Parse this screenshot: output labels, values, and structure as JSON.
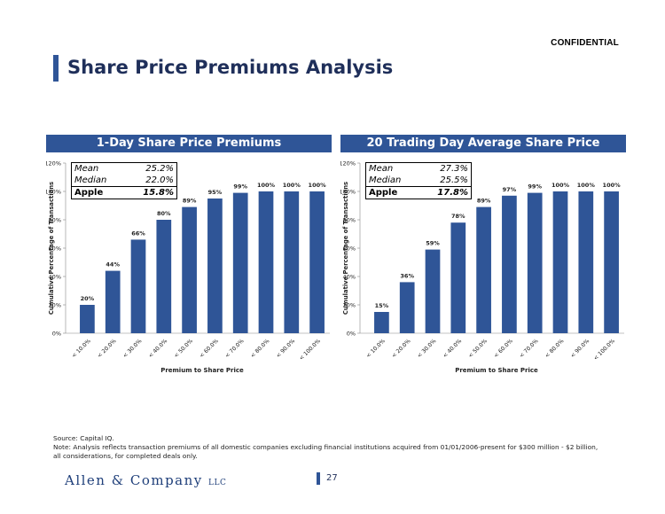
{
  "header": {
    "confidential": "CONFIDENTIAL",
    "title": "Share Price Premiums Analysis"
  },
  "colors": {
    "bar": "#2F5597",
    "accent": "#2F5597",
    "title": "#1F2F5A"
  },
  "chart_data": [
    {
      "type": "bar",
      "title": "1-Day Share Price Premiums",
      "xlabel": "Premium to Share Price",
      "ylabel": "Cumulative Percentage of Transactions",
      "ylim": [
        0,
        120
      ],
      "y_ticks": [
        "0%",
        "20%",
        "40%",
        "60%",
        "80%",
        "100%",
        "120%"
      ],
      "categories": [
        "< 10.0%",
        "< 20.0%",
        "< 30.0%",
        "< 40.0%",
        "< 50.0%",
        "< 60.0%",
        "< 70.0%",
        "< 80.0%",
        "< 90.0%",
        "< 100.0%"
      ],
      "values": [
        20,
        44,
        66,
        80,
        89,
        95,
        99,
        100,
        100,
        100
      ],
      "labels": [
        "20%",
        "44%",
        "66%",
        "80%",
        "89%",
        "95%",
        "99%",
        "100%",
        "100%",
        "100%"
      ],
      "stats": [
        {
          "label": "Mean",
          "value": "25.2%"
        },
        {
          "label": "Median",
          "value": "22.0%"
        },
        {
          "label": "Apple",
          "value": "15.8%"
        }
      ]
    },
    {
      "type": "bar",
      "title": "20 Trading Day Average Share Price Premiums",
      "xlabel": "Premium to Share Price",
      "ylabel": "Cumulative Percentage of Transactions",
      "ylim": [
        0,
        120
      ],
      "y_ticks": [
        "0%",
        "20%",
        "40%",
        "60%",
        "80%",
        "100%",
        "120%"
      ],
      "categories": [
        "< 10.0%",
        "< 20.0%",
        "< 30.0%",
        "< 40.0%",
        "< 50.0%",
        "< 60.0%",
        "< 70.0%",
        "< 80.0%",
        "< 90.0%",
        "< 100.0%"
      ],
      "values": [
        15,
        36,
        59,
        78,
        89,
        97,
        99,
        100,
        100,
        100
      ],
      "labels": [
        "15%",
        "36%",
        "59%",
        "78%",
        "89%",
        "97%",
        "99%",
        "100%",
        "100%",
        "100%"
      ],
      "stats": [
        {
          "label": "Mean",
          "value": "27.3%"
        },
        {
          "label": "Median",
          "value": "25.5%"
        },
        {
          "label": "Apple",
          "value": "17.8%"
        }
      ]
    }
  ],
  "footer": {
    "source": "Source: Capital IQ.",
    "note_line1": "Note: Analysis reflects transaction premiums of all domestic companies excluding financial institutions acquired from 01/01/2006-present for $300 million - $2 billion,",
    "note_line2": "all considerations, for completed deals only."
  },
  "logo": {
    "name": "Allen & Company",
    "suffix": "LLC"
  },
  "page_number": "27"
}
